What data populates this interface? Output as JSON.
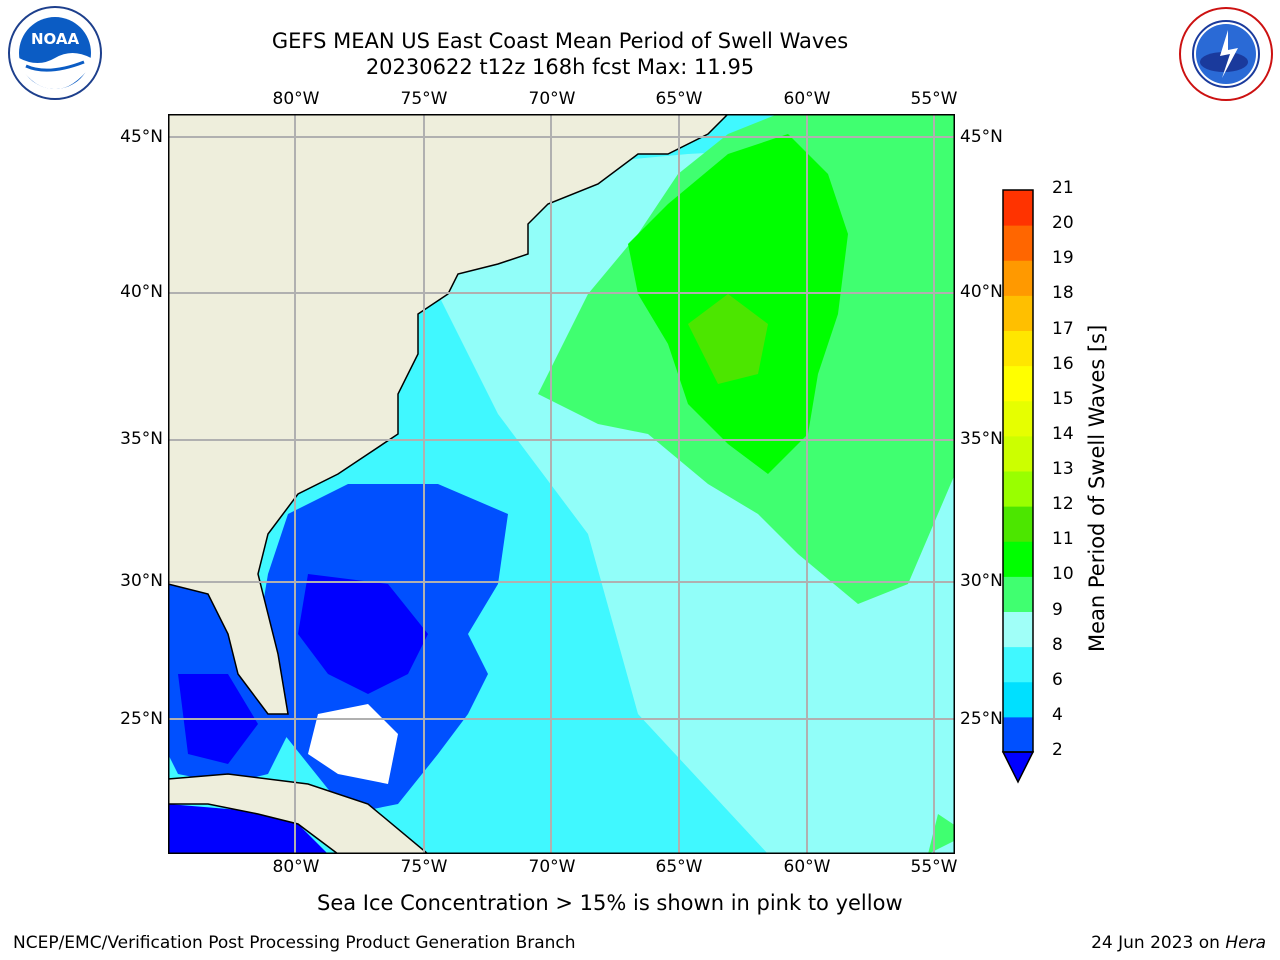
{
  "title": {
    "line1": "GEFS MEAN US East Coast Mean Period of Swell Waves",
    "line2": "20230622 t12z 168h fcst   Max: 11.95"
  },
  "logos": {
    "left": "NOAA",
    "right": "NATIONAL WEATHER SERVICE"
  },
  "map": {
    "lon_labels": [
      "80°W",
      "75°W",
      "70°W",
      "65°W",
      "60°W",
      "55°W"
    ],
    "lat_labels": [
      "45°N",
      "40°N",
      "35°N",
      "30°N",
      "25°N"
    ]
  },
  "colorbar": {
    "label": "Mean Period of Swell Waves [s]",
    "ticks": [
      "2",
      "4",
      "6",
      "8",
      "9",
      "10",
      "11",
      "12",
      "13",
      "14",
      "15",
      "16",
      "17",
      "18",
      "19",
      "20",
      "21"
    ],
    "colors": [
      "#0050ff",
      "#00e0ff",
      "#40f8ff",
      "#a0fff8",
      "#40ff70",
      "#00ff00",
      "#4ce600",
      "#99ff00",
      "#ccff00",
      "#e6ff00",
      "#ffff00",
      "#ffe600",
      "#ffbf00",
      "#ff9900",
      "#ff6600",
      "#ff3300",
      "#ff0000"
    ],
    "under_color": "#0000ff"
  },
  "note": "Sea Ice Concentration > 15% is shown in pink to yellow",
  "footer": {
    "left": "NCEP/EMC/Verification Post Processing Product Generation Branch",
    "right_date": "24 Jun 2023 on",
    "right_host": "Hera"
  }
}
